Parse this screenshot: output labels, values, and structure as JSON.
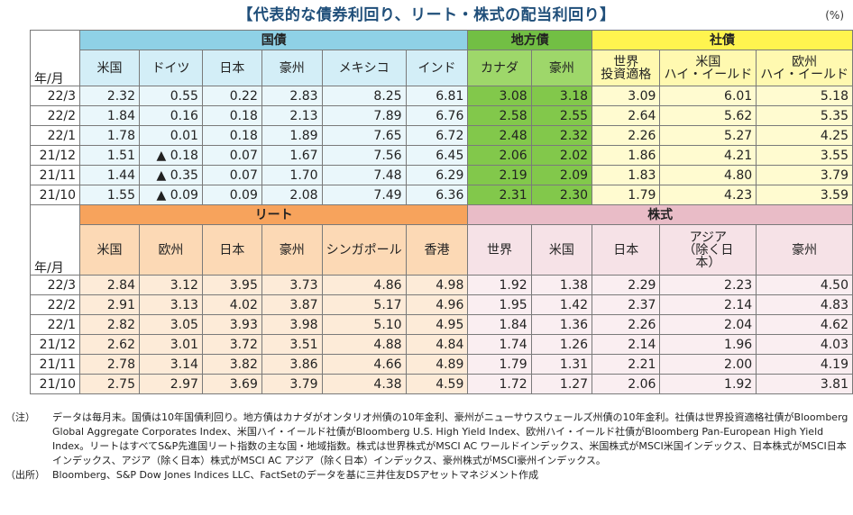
{
  "title": "【代表的な債券利回り、リート・株式の配当利回り】",
  "unit": "(%)",
  "row_label": "年/月",
  "bonds": {
    "groups": [
      "国債",
      "地方債",
      "社債"
    ],
    "columns": [
      "米国",
      "ドイツ",
      "日本",
      "豪州",
      "メキシコ",
      "インド",
      "カナダ",
      "豪州",
      "世界\n投資適格",
      "米国\nハイ・イールド",
      "欧州\nハイ・イールド"
    ],
    "rows": [
      {
        "date": "22/3",
        "values": [
          "2.32",
          "0.55",
          "0.22",
          "2.83",
          "8.25",
          "6.81",
          "3.08",
          "3.18",
          "3.09",
          "6.01",
          "5.18"
        ]
      },
      {
        "date": "22/2",
        "values": [
          "1.84",
          "0.16",
          "0.18",
          "2.13",
          "7.89",
          "6.76",
          "2.58",
          "2.55",
          "2.64",
          "5.62",
          "5.35"
        ]
      },
      {
        "date": "22/1",
        "values": [
          "1.78",
          "0.01",
          "0.18",
          "1.89",
          "7.65",
          "6.72",
          "2.48",
          "2.32",
          "2.26",
          "5.27",
          "4.25"
        ]
      },
      {
        "date": "21/12",
        "values": [
          "1.51",
          "▲ 0.18",
          "0.07",
          "1.67",
          "7.56",
          "6.45",
          "2.06",
          "2.02",
          "1.86",
          "4.21",
          "3.55"
        ]
      },
      {
        "date": "21/11",
        "values": [
          "1.44",
          "▲ 0.35",
          "0.07",
          "1.70",
          "7.48",
          "6.29",
          "2.19",
          "2.09",
          "1.83",
          "4.80",
          "3.79"
        ]
      },
      {
        "date": "21/10",
        "values": [
          "1.55",
          "▲ 0.09",
          "0.09",
          "2.08",
          "7.49",
          "6.36",
          "2.31",
          "2.30",
          "1.79",
          "4.23",
          "3.59"
        ]
      }
    ]
  },
  "equity": {
    "groups": [
      "リート",
      "株式"
    ],
    "columns": [
      "米国",
      "欧州",
      "日本",
      "豪州",
      "シンガポール",
      "香港",
      "世界",
      "米国",
      "日本",
      "アジア\n（除く日\n本）",
      "豪州"
    ],
    "rows": [
      {
        "date": "22/3",
        "values": [
          "2.84",
          "3.12",
          "3.95",
          "3.73",
          "4.86",
          "4.98",
          "1.92",
          "1.38",
          "2.29",
          "2.23",
          "4.50"
        ]
      },
      {
        "date": "22/2",
        "values": [
          "2.91",
          "3.13",
          "4.02",
          "3.87",
          "5.17",
          "4.96",
          "1.95",
          "1.42",
          "2.37",
          "2.14",
          "4.83"
        ]
      },
      {
        "date": "22/1",
        "values": [
          "2.82",
          "3.05",
          "3.93",
          "3.98",
          "5.10",
          "4.95",
          "1.84",
          "1.36",
          "2.26",
          "2.04",
          "4.62"
        ]
      },
      {
        "date": "21/12",
        "values": [
          "2.62",
          "3.01",
          "3.72",
          "3.51",
          "4.88",
          "4.84",
          "1.74",
          "1.26",
          "2.14",
          "1.96",
          "4.03"
        ]
      },
      {
        "date": "21/11",
        "values": [
          "2.78",
          "3.14",
          "3.82",
          "3.86",
          "4.66",
          "4.89",
          "1.79",
          "1.31",
          "2.21",
          "2.00",
          "4.19"
        ]
      },
      {
        "date": "21/10",
        "values": [
          "2.75",
          "2.97",
          "3.69",
          "3.79",
          "4.38",
          "4.59",
          "1.72",
          "1.27",
          "2.06",
          "1.92",
          "3.81"
        ]
      }
    ]
  },
  "notes": {
    "note_label": "（注）",
    "note_text": "データは毎月末。国債は10年国債利回り。地方債はカナダがオンタリオ州債の10年金利、豪州がニューサウスウェールズ州債の10年金利。社債は世界投資適格社債がBloomberg Global Aggregate Corporates Index、米国ハイ・イールド社債がBloomberg U.S. High Yield Index、欧州ハイ・イールド社債がBloomberg Pan-European High Yield Index。リートはすべてS&P先進国リート指数の主な国・地域指数。株式は世界株式がMSCI AC ワールドインデックス、米国株式がMSCI米国インデックス、日本株式がMSCI日本インデックス、アジア（除く日本）株式がMSCI AC アジア（除く日本）インデックス、豪州株式がMSCI豪州インデックス。",
    "source_label": "（出所）",
    "source_text": "Bloomberg、S&P Dow Jones Indices LLC、FactSetのデータを基に三井住友DSアセットマネジメント作成"
  }
}
